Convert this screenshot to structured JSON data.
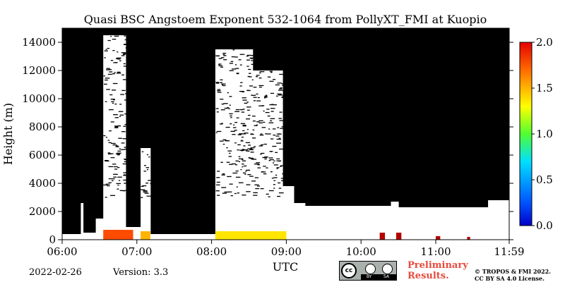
{
  "chart_data": {
    "type": "heatmap",
    "title": "Quasi BSC Angstoem Exponent 532-1064 from PollyXT_FMI at Kuopio",
    "xlabel": "UTC",
    "ylabel": "Height (m)",
    "x_ticks": [
      "06:00",
      "07:00",
      "08:00",
      "09:00",
      "10:00",
      "11:00",
      "11:59"
    ],
    "x_tick_hours": [
      6.0,
      7.0,
      8.0,
      9.0,
      10.0,
      11.0,
      11.983
    ],
    "xlim_hours": [
      6.0,
      11.983
    ],
    "y_ticks": [
      0,
      2000,
      4000,
      6000,
      8000,
      10000,
      12000,
      14000
    ],
    "ylim": [
      0,
      15000
    ],
    "colorbar": {
      "ticks": [
        "0.0",
        "0.5",
        "1.0",
        "1.5",
        "2.0"
      ],
      "tick_values": [
        0.0,
        0.5,
        1.0,
        1.5,
        2.0
      ],
      "range": [
        0.0,
        2.0
      ],
      "colormap": "jet"
    },
    "no_data_color": "#000000",
    "cloud_color": "#ffffff",
    "cloud_regions": [
      {
        "start": 6.0,
        "end": 6.25,
        "top": 400
      },
      {
        "start": 6.25,
        "end": 6.28,
        "top": 2600
      },
      {
        "start": 6.28,
        "end": 6.45,
        "top": 500
      },
      {
        "start": 6.45,
        "end": 6.55,
        "top": 1500
      },
      {
        "start": 6.55,
        "end": 6.85,
        "top": 14500
      },
      {
        "start": 6.85,
        "end": 7.05,
        "top": 900
      },
      {
        "start": 7.05,
        "end": 7.18,
        "top": 6500
      },
      {
        "start": 7.18,
        "end": 8.05,
        "top": 400
      },
      {
        "start": 8.05,
        "end": 8.55,
        "top": 13500
      },
      {
        "start": 8.55,
        "end": 8.95,
        "top": 12000
      },
      {
        "start": 8.95,
        "end": 9.1,
        "top": 3800
      },
      {
        "start": 9.1,
        "end": 9.25,
        "top": 2600
      },
      {
        "start": 9.25,
        "end": 10.4,
        "top": 2400
      },
      {
        "start": 10.4,
        "end": 10.5,
        "top": 2700
      },
      {
        "start": 10.5,
        "end": 11.7,
        "top": 2300
      },
      {
        "start": 11.7,
        "end": 11.983,
        "top": 2800
      }
    ],
    "aerosol_patches": [
      {
        "start": 6.55,
        "end": 6.95,
        "bottom": 0,
        "top": 700,
        "value": 1.6
      },
      {
        "start": 7.05,
        "end": 7.18,
        "bottom": 0,
        "top": 600,
        "value": 1.4
      },
      {
        "start": 8.05,
        "end": 9.0,
        "bottom": 0,
        "top": 600,
        "value": 1.3
      },
      {
        "start": 10.25,
        "end": 10.32,
        "bottom": 0,
        "top": 500,
        "value": 1.9
      },
      {
        "start": 10.47,
        "end": 10.54,
        "bottom": 0,
        "top": 500,
        "value": 1.9
      },
      {
        "start": 11.0,
        "end": 11.06,
        "bottom": 0,
        "top": 250,
        "value": 1.9
      },
      {
        "start": 11.42,
        "end": 11.46,
        "bottom": 0,
        "top": 200,
        "value": 1.9
      }
    ]
  },
  "footer": {
    "date": "2022-02-26",
    "version": "Version: 3.3",
    "preliminary_line1": "Preliminary",
    "preliminary_line2": "Results.",
    "copyright_line1": "© TROPOS & FMI 2022.",
    "copyright_line2": "CC BY SA 4.0 License.",
    "license_badge": {
      "cc": "cc",
      "by": "BY",
      "sa": "SA"
    }
  }
}
